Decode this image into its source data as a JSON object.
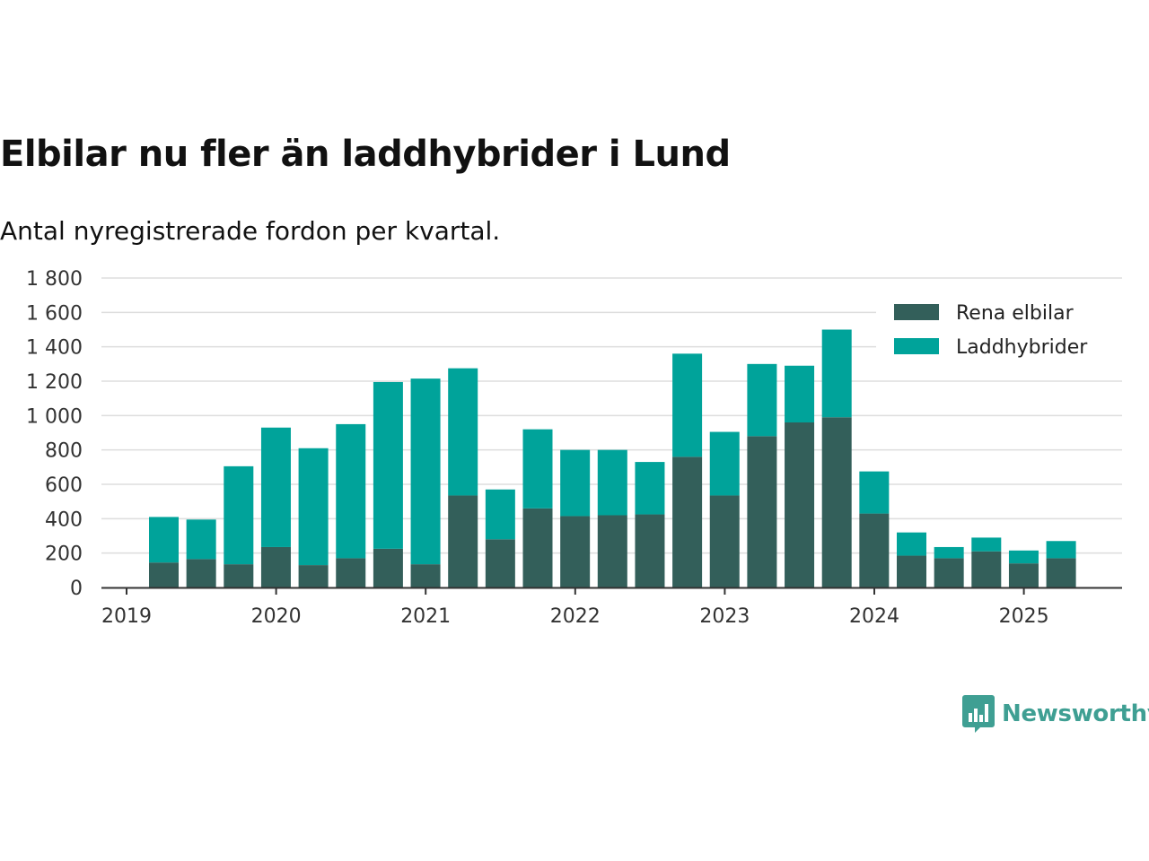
{
  "title": "Elbilar nu fler än laddhybrider i Lund",
  "subtitle": "Antal nyregistrerade fordon per kvartal.",
  "brand": {
    "name": "Newsworthy",
    "color": "#3f9f93",
    "icon": "newsworthy-logo-icon"
  },
  "colors": {
    "elbilar": "#335f5a",
    "laddhybrider": "#00a39a",
    "grid": "#dddddd",
    "axis": "#333333"
  },
  "chart_data": {
    "type": "bar",
    "stacked": true,
    "title": "Elbilar nu fler än laddhybrider i Lund",
    "subtitle": "Antal nyregistrerade fordon per kvartal.",
    "xlabel": "",
    "ylabel": "",
    "ylim": [
      0,
      1800
    ],
    "yticks": [
      0,
      200,
      400,
      600,
      800,
      1000,
      1200,
      1400,
      1600,
      1800
    ],
    "ytick_labels": [
      "0",
      "200",
      "400",
      "600",
      "800",
      "1 000",
      "1 200",
      "1 400",
      "1 600",
      "1 800"
    ],
    "xticks": [
      "2019",
      "2020",
      "2021",
      "2022",
      "2023",
      "2024",
      "2025"
    ],
    "grid": true,
    "legend_position": "top-right",
    "categories": [
      "2019 Q2",
      "2019 Q3",
      "2019 Q4",
      "2020 Q1",
      "2020 Q2",
      "2020 Q3",
      "2020 Q4",
      "2021 Q1",
      "2021 Q2",
      "2021 Q3",
      "2021 Q4",
      "2022 Q1",
      "2022 Q2",
      "2022 Q3",
      "2022 Q4",
      "2023 Q1",
      "2023 Q2",
      "2023 Q3",
      "2023 Q4",
      "2024 Q1",
      "2024 Q2",
      "2024 Q3",
      "2024 Q4",
      "2025 Q1",
      "2025 Q2"
    ],
    "series": [
      {
        "name": "Rena elbilar",
        "color": "#335f5a",
        "values": [
          145,
          165,
          135,
          235,
          130,
          170,
          225,
          135,
          535,
          280,
          460,
          415,
          420,
          425,
          760,
          535,
          880,
          960,
          990,
          430,
          185,
          170,
          210,
          140,
          170
        ]
      },
      {
        "name": "Laddhybrider",
        "color": "#00a39a",
        "values": [
          265,
          230,
          570,
          695,
          680,
          780,
          970,
          1080,
          740,
          290,
          460,
          385,
          380,
          305,
          600,
          370,
          420,
          330,
          510,
          245,
          135,
          65,
          80,
          75,
          100
        ]
      }
    ]
  }
}
